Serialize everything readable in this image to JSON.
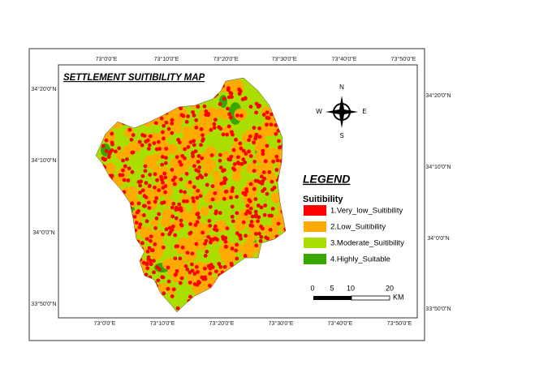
{
  "map": {
    "title": "SETTLEMENT SUITIBILITY MAP",
    "top_labels": [
      "73°0'0\"E",
      "73°10'0\"E",
      "73°20'0\"E",
      "73°30'0\"E",
      "73°40'0\"E",
      "73°50'0\"E"
    ],
    "bottom_labels": [
      "73°0'0\"E",
      "73°10'0\"E",
      "73°20'0\"E",
      "73°30'0\"E",
      "73°40'0\"E",
      "73°50'0\"E"
    ],
    "left_labels": [
      "34°20'0\"N",
      "34°10'0\"N",
      "34°0'0\"N",
      "33°50'0\"N"
    ],
    "right_labels": [
      "34°20'0\"N",
      "34°10'0\"N",
      "34°0'0\"N",
      "33°50'0\"N"
    ],
    "compass": {
      "n": "N",
      "e": "E",
      "s": "S",
      "w": "W"
    },
    "legend": {
      "title": "LEGEND",
      "subtitle": "Suitibility",
      "items": [
        {
          "label": "1.Very_low_Suitibility",
          "color": "#ff0000"
        },
        {
          "label": "2.Low_Suitibility",
          "color": "#ffaa00"
        },
        {
          "label": "3.Moderate_Suitibility",
          "color": "#aadd00"
        },
        {
          "label": "4.Highly_Suitable",
          "color": "#38a800"
        }
      ]
    },
    "scale": {
      "ticks": [
        0,
        5,
        10,
        20
      ],
      "unit": "KM"
    }
  }
}
